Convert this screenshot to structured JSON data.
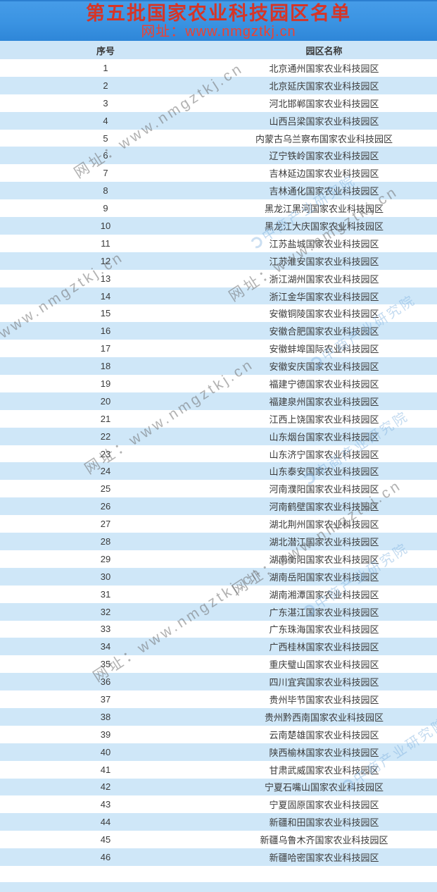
{
  "header": {
    "title": "第五批国家农业科技园区名单",
    "site_url": "网址：www.nmgztkj.cn",
    "banner_color": "#3a93e2",
    "title_color": "#d63527",
    "url_color": "#ef4130"
  },
  "watermark": {
    "url_text": "网址：www.nmgztkj.cn",
    "brand_text": "中商产业研究院",
    "url_color": "#6c6c6c",
    "brand_color": "#7dafde"
  },
  "colors": {
    "row_alt": "#cfe7f8",
    "row_white": "#ffffff",
    "text": "#3a3a3a"
  },
  "table": {
    "columns": [
      "序号",
      "园区名称"
    ],
    "rows": [
      {
        "no": "1",
        "name": "北京通州国家农业科技园区"
      },
      {
        "no": "2",
        "name": "北京延庆国家农业科技园区"
      },
      {
        "no": "3",
        "name": "河北邯郸国家农业科技园区"
      },
      {
        "no": "4",
        "name": "山西吕梁国家农业科技园区"
      },
      {
        "no": "5",
        "name": "内蒙古乌兰察布国家农业科技园区"
      },
      {
        "no": "6",
        "name": "辽宁铁岭国家农业科技园区"
      },
      {
        "no": "7",
        "name": "吉林延边国家农业科技园区"
      },
      {
        "no": "8",
        "name": "吉林通化国家农业科技园区"
      },
      {
        "no": "9",
        "name": "黑龙江黑河国家农业科技园区"
      },
      {
        "no": "10",
        "name": "黑龙江大庆国家农业科技园区"
      },
      {
        "no": "11",
        "name": "江苏盐城国家农业科技园区"
      },
      {
        "no": "12",
        "name": "江苏淮安国家农业科技园区"
      },
      {
        "no": "13",
        "name": "浙江湖州国家农业科技园区"
      },
      {
        "no": "14",
        "name": "浙江金华国家农业科技园区"
      },
      {
        "no": "15",
        "name": "安徽铜陵国家农业科技园区"
      },
      {
        "no": "16",
        "name": "安徽合肥国家农业科技园区"
      },
      {
        "no": "17",
        "name": "安徽蚌埠国际农业科技园区"
      },
      {
        "no": "18",
        "name": "安徽安庆国家农业科技园区"
      },
      {
        "no": "19",
        "name": "福建宁德国家农业科技园区"
      },
      {
        "no": "20",
        "name": "福建泉州国家农业科技园区"
      },
      {
        "no": "21",
        "name": "江西上饶国家农业科技园区"
      },
      {
        "no": "22",
        "name": "山东烟台国家农业科技园区"
      },
      {
        "no": "23",
        "name": "山东济宁国家农业科技园区"
      },
      {
        "no": "24",
        "name": "山东泰安国家农业科技园区"
      },
      {
        "no": "25",
        "name": "河南濮阳国家农业科技园区"
      },
      {
        "no": "26",
        "name": "河南鹤壁国家农业科技园区"
      },
      {
        "no": "27",
        "name": "湖北荆州国家农业科技园区"
      },
      {
        "no": "28",
        "name": "湖北潜江国家农业科技园区"
      },
      {
        "no": "29",
        "name": "湖南衡阳国家农业科技园区"
      },
      {
        "no": "30",
        "name": "湖南岳阳国家农业科技园区"
      },
      {
        "no": "31",
        "name": "湖南湘潭国家农业科技园区"
      },
      {
        "no": "32",
        "name": "广东湛江国家农业科技园区"
      },
      {
        "no": "33",
        "name": "广东珠海国家农业科技园区"
      },
      {
        "no": "34",
        "name": "广西桂林国家农业科技园区"
      },
      {
        "no": "35",
        "name": "重庆璧山国家农业科技园区"
      },
      {
        "no": "36",
        "name": "四川宜宾国家农业科技园区"
      },
      {
        "no": "37",
        "name": "贵州毕节国家农业科技园区"
      },
      {
        "no": "38",
        "name": "贵州黔西南国家农业科技园区"
      },
      {
        "no": "39",
        "name": "云南楚雄国家农业科技园区"
      },
      {
        "no": "40",
        "name": "陕西榆林国家农业科技园区"
      },
      {
        "no": "41",
        "name": "甘肃武威国家农业科技园区"
      },
      {
        "no": "42",
        "name": "宁夏石嘴山国家农业科技园区"
      },
      {
        "no": "43",
        "name": "宁夏固原国家农业科技园区"
      },
      {
        "no": "44",
        "name": "新疆和田国家农业科技园区"
      },
      {
        "no": "45",
        "name": "新疆乌鲁木齐国家农业科技园区"
      },
      {
        "no": "46",
        "name": "新疆哈密国家农业科技园区"
      }
    ]
  },
  "chart_data": {
    "type": "table",
    "title": "第五批国家农业科技园区名单",
    "columns": [
      "序号",
      "园区名称"
    ],
    "rows": [
      [
        "1",
        "北京通州国家农业科技园区"
      ],
      [
        "2",
        "北京延庆国家农业科技园区"
      ],
      [
        "3",
        "河北邯郸国家农业科技园区"
      ],
      [
        "4",
        "山西吕梁国家农业科技园区"
      ],
      [
        "5",
        "内蒙古乌兰察布国家农业科技园区"
      ],
      [
        "6",
        "辽宁铁岭国家农业科技园区"
      ],
      [
        "7",
        "吉林延边国家农业科技园区"
      ],
      [
        "8",
        "吉林通化国家农业科技园区"
      ],
      [
        "9",
        "黑龙江黑河国家农业科技园区"
      ],
      [
        "10",
        "黑龙江大庆国家农业科技园区"
      ],
      [
        "11",
        "江苏盐城国家农业科技园区"
      ],
      [
        "12",
        "江苏淮安国家农业科技园区"
      ],
      [
        "13",
        "浙江湖州国家农业科技园区"
      ],
      [
        "14",
        "浙江金华国家农业科技园区"
      ],
      [
        "15",
        "安徽铜陵国家农业科技园区"
      ],
      [
        "16",
        "安徽合肥国家农业科技园区"
      ],
      [
        "17",
        "安徽蚌埠国际农业科技园区"
      ],
      [
        "18",
        "安徽安庆国家农业科技园区"
      ],
      [
        "19",
        "福建宁德国家农业科技园区"
      ],
      [
        "20",
        "福建泉州国家农业科技园区"
      ],
      [
        "21",
        "江西上饶国家农业科技园区"
      ],
      [
        "22",
        "山东烟台国家农业科技园区"
      ],
      [
        "23",
        "山东济宁国家农业科技园区"
      ],
      [
        "24",
        "山东泰安国家农业科技园区"
      ],
      [
        "25",
        "河南濮阳国家农业科技园区"
      ],
      [
        "26",
        "河南鹤壁国家农业科技园区"
      ],
      [
        "27",
        "湖北荆州国家农业科技园区"
      ],
      [
        "28",
        "湖北潜江国家农业科技园区"
      ],
      [
        "29",
        "湖南衡阳国家农业科技园区"
      ],
      [
        "30",
        "湖南岳阳国家农业科技园区"
      ],
      [
        "31",
        "湖南湘潭国家农业科技园区"
      ],
      [
        "32",
        "广东湛江国家农业科技园区"
      ],
      [
        "33",
        "广东珠海国家农业科技园区"
      ],
      [
        "34",
        "广西桂林国家农业科技园区"
      ],
      [
        "35",
        "重庆璧山国家农业科技园区"
      ],
      [
        "36",
        "四川宜宾国家农业科技园区"
      ],
      [
        "37",
        "贵州毕节国家农业科技园区"
      ],
      [
        "38",
        "贵州黔西南国家农业科技园区"
      ],
      [
        "39",
        "云南楚雄国家农业科技园区"
      ],
      [
        "40",
        "陕西榆林国家农业科技园区"
      ],
      [
        "41",
        "甘肃武威国家农业科技园区"
      ],
      [
        "42",
        "宁夏石嘴山国家农业科技园区"
      ],
      [
        "43",
        "宁夏固原国家农业科技园区"
      ],
      [
        "44",
        "新疆和田国家农业科技园区"
      ],
      [
        "45",
        "新疆乌鲁木齐国家农业科技园区"
      ],
      [
        "46",
        "新疆哈密国家农业科技园区"
      ]
    ]
  }
}
